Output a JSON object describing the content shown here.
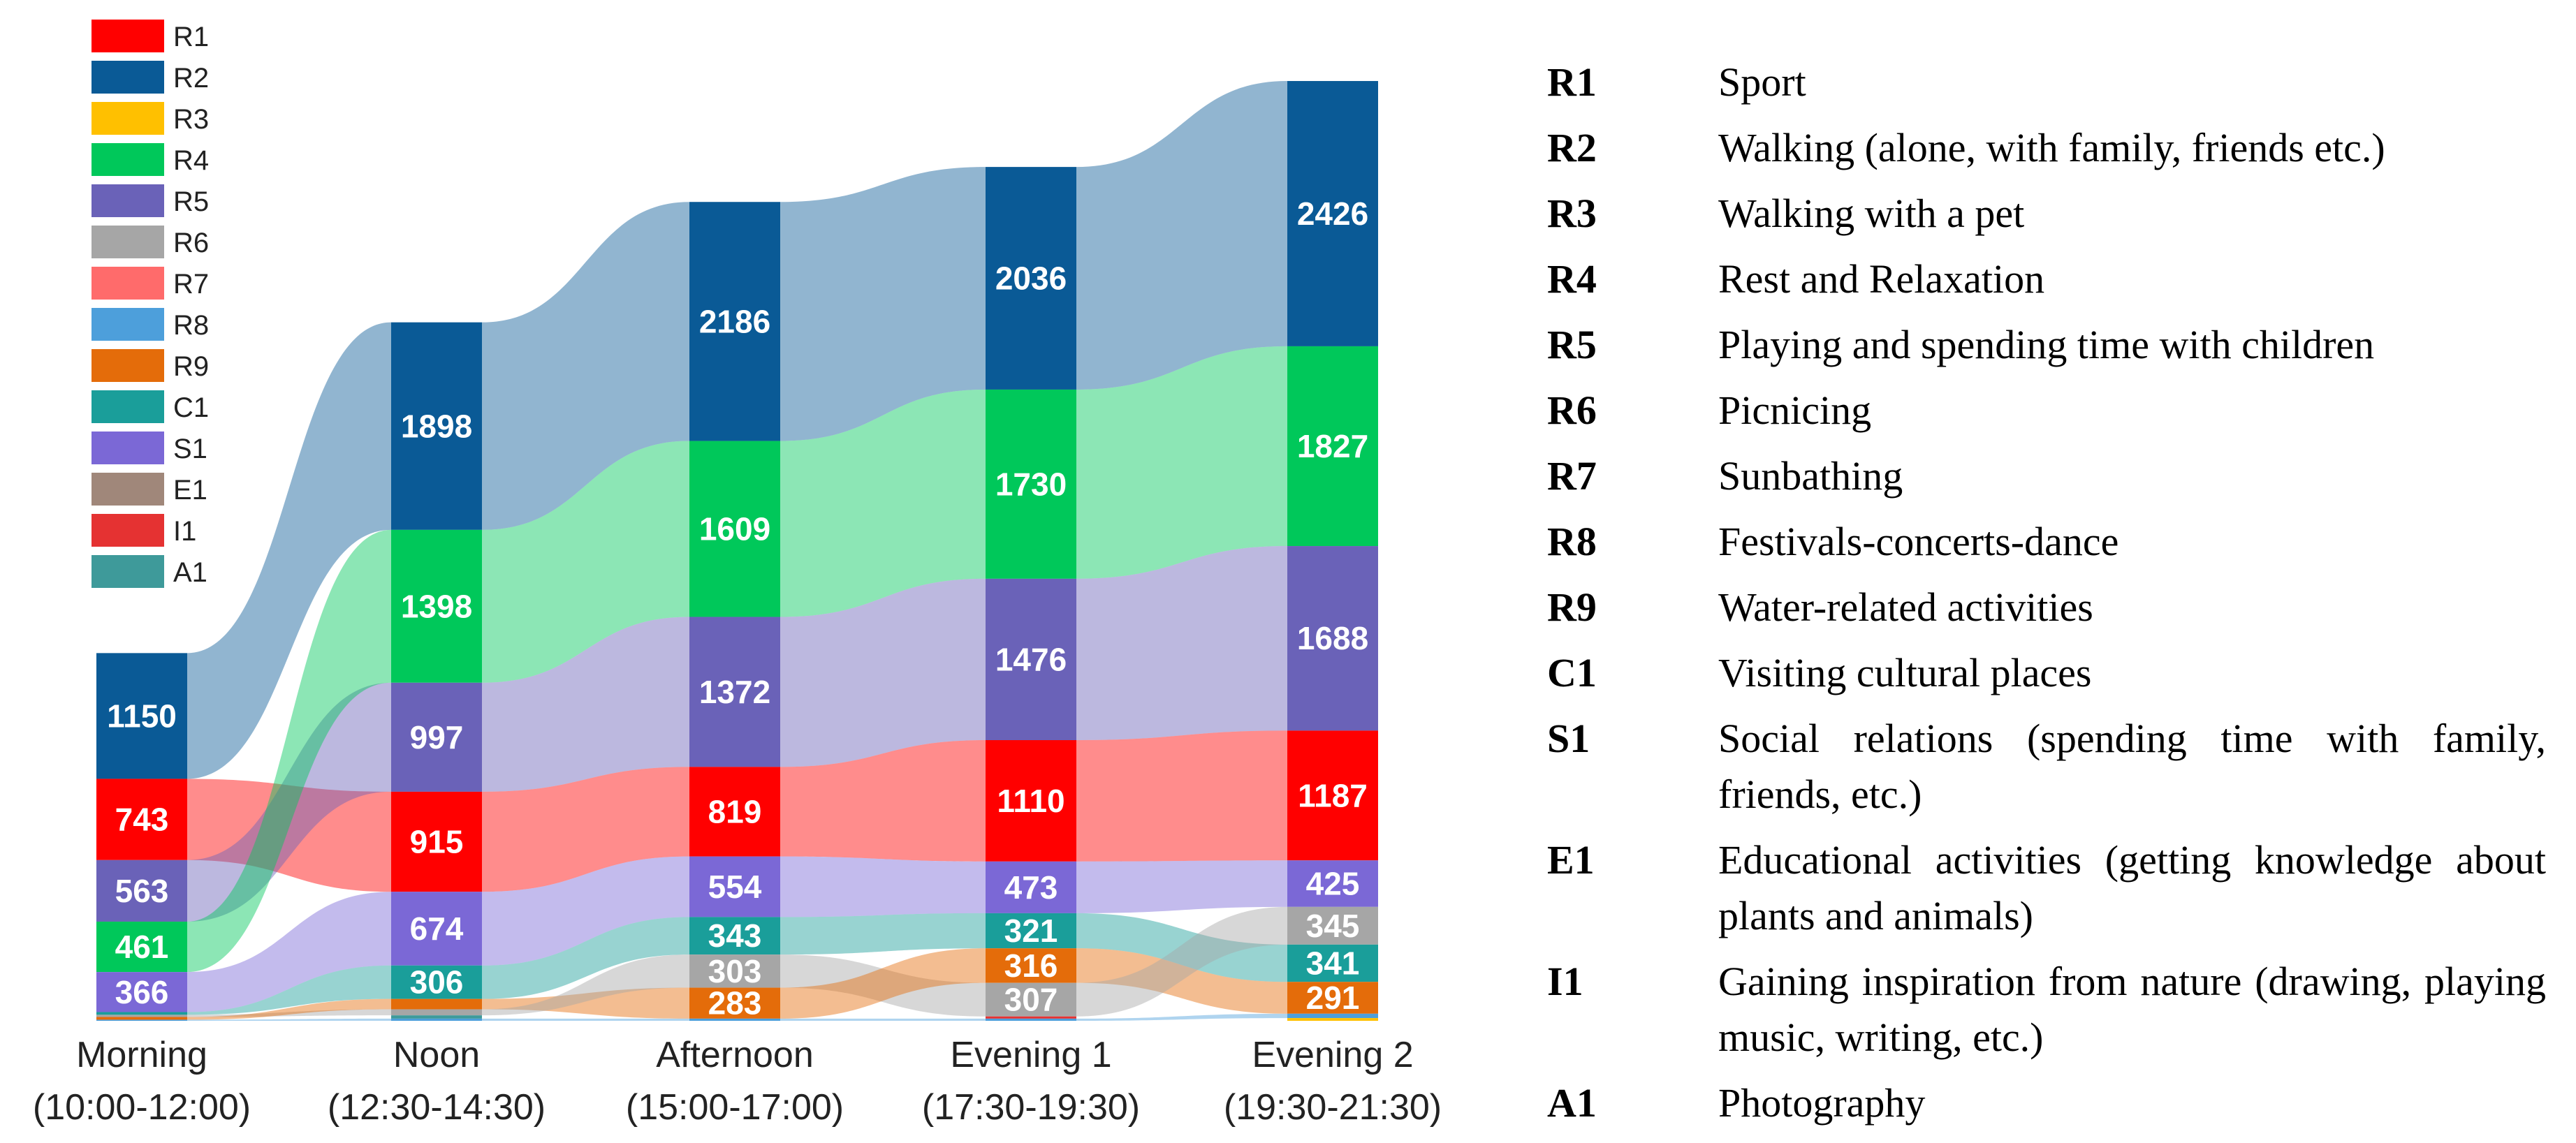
{
  "chart_data": {
    "type": "alluvial",
    "legend": [
      {
        "code": "R1",
        "color": "#ff0000"
      },
      {
        "code": "R2",
        "color": "#0a5a96"
      },
      {
        "code": "R3",
        "color": "#ffc000"
      },
      {
        "code": "R4",
        "color": "#00c85a"
      },
      {
        "code": "R5",
        "color": "#6a62b8"
      },
      {
        "code": "R6",
        "color": "#a6a6a6"
      },
      {
        "code": "R7",
        "color": "#ff6b6b"
      },
      {
        "code": "R8",
        "color": "#4d9fdb"
      },
      {
        "code": "R9",
        "color": "#e46c0a"
      },
      {
        "code": "C1",
        "color": "#1a9e9a"
      },
      {
        "code": "S1",
        "color": "#7b68d6"
      },
      {
        "code": "E1",
        "color": "#a0877a"
      },
      {
        "code": "I1",
        "color": "#e53232"
      },
      {
        "code": "A1",
        "color": "#3e9a9a"
      }
    ],
    "times": [
      {
        "name": "Morning",
        "range": "(10:00-12:00)"
      },
      {
        "name": "Noon",
        "range": "(12:30-14:30)"
      },
      {
        "name": "Afternoon",
        "range": "(15:00-17:00)"
      },
      {
        "name": "Evening 1",
        "range": "(17:30-19:30)"
      },
      {
        "name": "Evening 2",
        "range": "(19:30-21:30)"
      }
    ],
    "columns": [
      [
        [
          "R2",
          1150
        ],
        [
          "R1",
          743
        ],
        [
          "R5",
          563
        ],
        [
          "R4",
          461
        ],
        [
          "S1",
          366
        ],
        [
          "C1",
          25
        ],
        [
          "R6",
          20
        ],
        [
          "R9",
          25
        ],
        [
          "R8",
          10
        ]
      ],
      [
        [
          "R2",
          1898
        ],
        [
          "R4",
          1398
        ],
        [
          "R5",
          997
        ],
        [
          "R1",
          915
        ],
        [
          "S1",
          674
        ],
        [
          "C1",
          306
        ],
        [
          "R9",
          95
        ],
        [
          "R6",
          55
        ],
        [
          "A1",
          30
        ],
        [
          "R8",
          20
        ]
      ],
      [
        [
          "R2",
          2186
        ],
        [
          "R4",
          1609
        ],
        [
          "R5",
          1372
        ],
        [
          "R1",
          819
        ],
        [
          "S1",
          554
        ],
        [
          "C1",
          343
        ],
        [
          "R6",
          303
        ],
        [
          "R9",
          283
        ],
        [
          "R8",
          20
        ]
      ],
      [
        [
          "R2",
          2036
        ],
        [
          "R4",
          1730
        ],
        [
          "R5",
          1476
        ],
        [
          "R1",
          1110
        ],
        [
          "S1",
          473
        ],
        [
          "C1",
          321
        ],
        [
          "R9",
          316
        ],
        [
          "R6",
          307
        ],
        [
          "I1",
          20
        ],
        [
          "R8",
          20
        ]
      ],
      [
        [
          "R2",
          2426
        ],
        [
          "R4",
          1827
        ],
        [
          "R5",
          1688
        ],
        [
          "R1",
          1187
        ],
        [
          "S1",
          425
        ],
        [
          "R6",
          345
        ],
        [
          "C1",
          341
        ],
        [
          "R9",
          291
        ],
        [
          "R8",
          40
        ],
        [
          "R3",
          25
        ]
      ]
    ],
    "labeled_values": [
      [
        1150,
        743,
        563,
        461,
        366
      ],
      [
        1898,
        1398,
        997,
        915,
        674,
        306
      ],
      [
        2186,
        1609,
        1372,
        819,
        554,
        343,
        303,
        283
      ],
      [
        2036,
        1730,
        1476,
        1110,
        473,
        321,
        316,
        307
      ],
      [
        2426,
        1827,
        1688,
        1187,
        425,
        345,
        341,
        291
      ]
    ],
    "axis_labels": [
      "Morning",
      "Noon",
      "Afternoon",
      "Evening 1",
      "Evening 2"
    ],
    "title": "",
    "codes": [
      {
        "code": "R1",
        "desc": "Sport"
      },
      {
        "code": "R2",
        "desc": "Walking (alone, with family, friends etc.)"
      },
      {
        "code": "R3",
        "desc": "Walking with a pet"
      },
      {
        "code": "R4",
        "desc": "Rest and Relaxation"
      },
      {
        "code": "R5",
        "desc": "Playing and spending time with children"
      },
      {
        "code": "R6",
        "desc": "Picnicing"
      },
      {
        "code": "R7",
        "desc": "Sunbathing"
      },
      {
        "code": "R8",
        "desc": "Festivals-concerts-dance"
      },
      {
        "code": "R9",
        "desc": "Water-related activities"
      },
      {
        "code": "C1",
        "desc": "Visiting cultural places"
      },
      {
        "code": "S1",
        "desc": "Social relations (spending time with family, friends, etc.)"
      },
      {
        "code": "E1",
        "desc": "Educational activities (getting knowledge about plants and animals)"
      },
      {
        "code": "I1",
        "desc": "Gaining inspiration from nature (drawing, playing music, writing, etc.)"
      },
      {
        "code": "A1",
        "desc": "Photography"
      }
    ]
  }
}
